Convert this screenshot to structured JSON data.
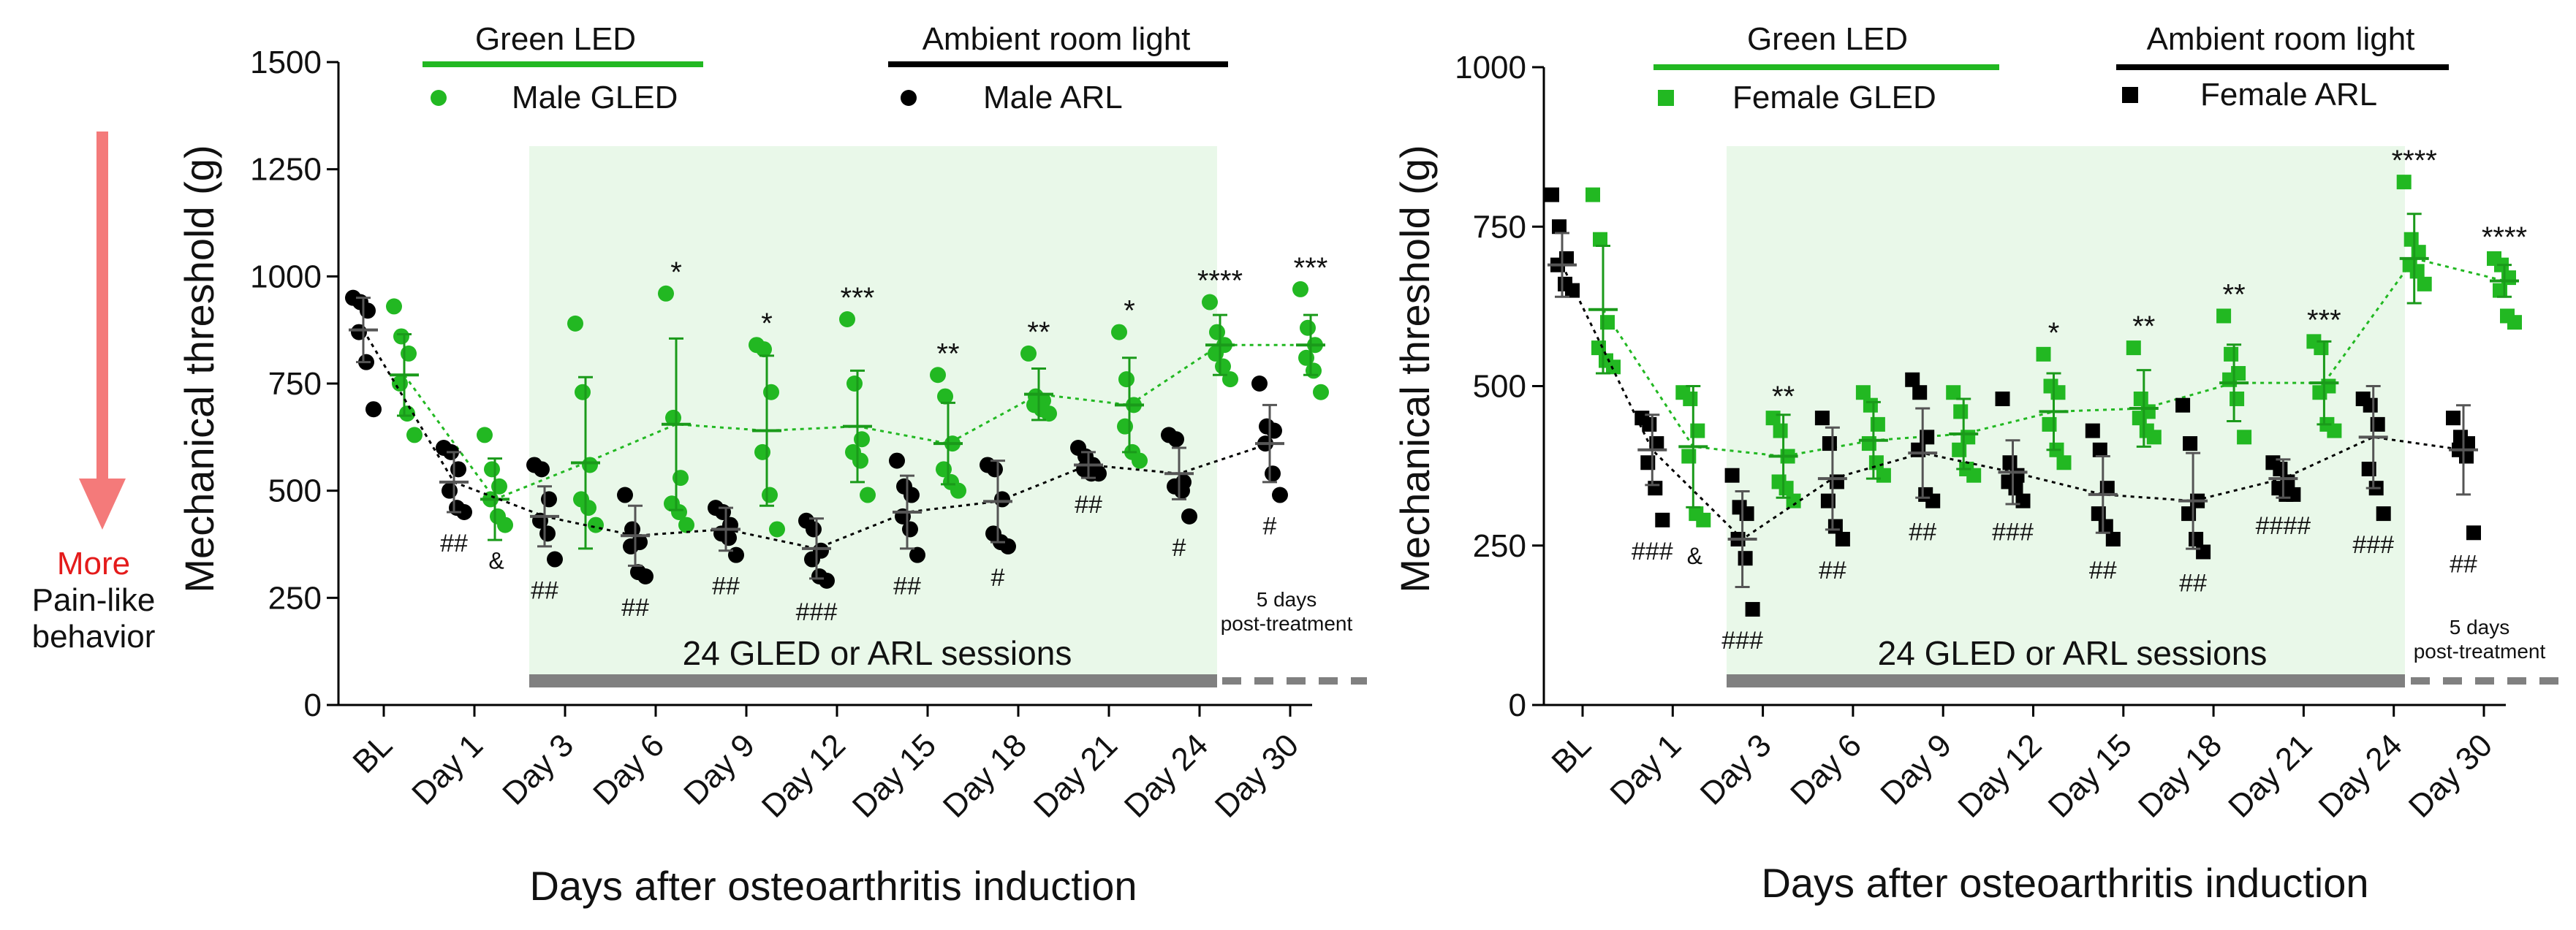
{
  "colors": {
    "gled": "#22b822",
    "arl": "#000000",
    "shade": "#e9f8e9",
    "bar": "#808080",
    "arrow": "#f47a7a",
    "more": "#e41b1b"
  },
  "side_label": {
    "more": "More",
    "line2": "Pain-like",
    "line3": "behavior"
  },
  "chart_data": [
    {
      "type": "scatter",
      "ylabel": "Mechanical threshold (g)",
      "xlabel": "Days after osteoarthritis induction",
      "ylim": [
        0,
        1500
      ],
      "yticks": [
        0,
        250,
        500,
        750,
        1000,
        1250,
        1500
      ],
      "categories": [
        "BL",
        "Day 1",
        "Day 3",
        "Day 6",
        "Day 9",
        "Day 12",
        "Day 15",
        "Day 18",
        "Day 21",
        "Day 24",
        "Day 30"
      ],
      "legend": {
        "green_title": "Green LED",
        "green_entry": "Male GLED",
        "black_title": "Ambient room light",
        "black_entry": "Male ARL",
        "marker": "circle"
      },
      "sessions_label": "24 GLED or ARL sessions",
      "post_label_1": "5 days",
      "post_label_2": "post-treatment",
      "series": [
        {
          "name": "Male GLED",
          "means": [
            770,
            480,
            565,
            655,
            640,
            650,
            610,
            725,
            700,
            840,
            840
          ],
          "errors": [
            95,
            95,
            200,
            200,
            175,
            130,
            95,
            60,
            110,
            70,
            70
          ],
          "points": [
            [
              930,
              860,
              820,
              750,
              680,
              630
            ],
            [
              630,
              550,
              510,
              480,
              440,
              420
            ],
            [
              890,
              730,
              560,
              480,
              460,
              420
            ],
            [
              960,
              670,
              530,
              470,
              450,
              420
            ],
            [
              840,
              830,
              730,
              590,
              490,
              410
            ],
            [
              900,
              750,
              620,
              590,
              570,
              490
            ],
            [
              770,
              720,
              610,
              550,
              520,
              500
            ],
            [
              820,
              720,
              710,
              700,
              690,
              680
            ],
            [
              870,
              760,
              700,
              650,
              590,
              570
            ],
            [
              940,
              870,
              840,
              820,
              790,
              760
            ],
            [
              970,
              880,
              840,
              810,
              780,
              730
            ]
          ],
          "sig": [
            "",
            "&",
            "",
            "*",
            "*",
            "***",
            "**",
            "**",
            "*",
            "****",
            "***"
          ]
        },
        {
          "name": "Male ARL",
          "means": [
            875,
            520,
            440,
            395,
            410,
            365,
            450,
            475,
            560,
            540,
            610
          ],
          "errors": [
            75,
            70,
            70,
            70,
            50,
            70,
            85,
            95,
            30,
            60,
            90
          ],
          "points": [
            [
              950,
              940,
              920,
              870,
              800,
              690
            ],
            [
              600,
              590,
              550,
              500,
              460,
              450
            ],
            [
              560,
              550,
              480,
              430,
              400,
              340
            ],
            [
              490,
              410,
              380,
              370,
              310,
              300
            ],
            [
              460,
              450,
              420,
              400,
              390,
              350
            ],
            [
              430,
              410,
              360,
              340,
              300,
              290
            ],
            [
              570,
              510,
              490,
              440,
              410,
              350
            ],
            [
              560,
              550,
              480,
              400,
              380,
              370
            ],
            [
              600,
              580,
              560,
              550,
              540,
              540
            ],
            [
              630,
              620,
              520,
              510,
              500,
              440
            ],
            [
              750,
              650,
              640,
              610,
              540,
              490
            ]
          ],
          "sig": [
            "",
            "##",
            "##",
            "##",
            "##",
            "###",
            "##",
            "#",
            "##",
            "#",
            "#"
          ]
        }
      ]
    },
    {
      "type": "scatter",
      "ylabel": "Mechanical threshold (g)",
      "xlabel": "Days after osteoarthritis induction",
      "ylim": [
        0,
        1000
      ],
      "yticks": [
        0,
        250,
        500,
        750,
        1000
      ],
      "categories": [
        "BL",
        "Day 1",
        "Day 3",
        "Day 6",
        "Day 9",
        "Day 12",
        "Day 15",
        "Day 18",
        "Day 21",
        "Day 24",
        "Day 30"
      ],
      "legend": {
        "green_title": "Green LED",
        "green_entry": "Female GLED",
        "black_title": "Ambient room light",
        "black_entry": "Female ARL",
        "marker": "square"
      },
      "sessions_label": "24 GLED or ARL sessions",
      "post_label_1": "5 days",
      "post_label_2": "post-treatment",
      "series": [
        {
          "name": "Female GLED",
          "means": [
            620,
            405,
            390,
            415,
            425,
            460,
            465,
            505,
            505,
            700,
            665
          ],
          "errors": [
            100,
            95,
            65,
            60,
            55,
            60,
            60,
            60,
            65,
            70,
            25
          ],
          "points": [
            [
              800,
              730,
              600,
              560,
              540,
              530
            ],
            [
              490,
              480,
              430,
              390,
              300,
              290
            ],
            [
              450,
              430,
              390,
              350,
              340,
              320
            ],
            [
              490,
              470,
              440,
              410,
              380,
              360
            ],
            [
              490,
              460,
              420,
              400,
              370,
              360
            ],
            [
              550,
              500,
              490,
              440,
              400,
              380
            ],
            [
              560,
              480,
              460,
              450,
              430,
              420
            ],
            [
              610,
              550,
              520,
              510,
              480,
              420
            ],
            [
              570,
              560,
              500,
              490,
              440,
              430
            ],
            [
              820,
              730,
              710,
              690,
              680,
              660
            ],
            [
              700,
              690,
              670,
              650,
              610,
              600
            ]
          ],
          "sig": [
            "",
            "&",
            "**",
            "",
            "",
            "*",
            "**",
            "**",
            "***",
            "****",
            "****"
          ]
        },
        {
          "name": "Female ARL",
          "means": [
            690,
            400,
            260,
            355,
            395,
            365,
            330,
            320,
            355,
            420,
            400
          ],
          "errors": [
            50,
            55,
            75,
            80,
            70,
            50,
            60,
            75,
            30,
            80,
            70
          ],
          "points": [
            [
              800,
              750,
              700,
              690,
              660,
              650
            ],
            [
              450,
              440,
              410,
              380,
              340,
              290
            ],
            [
              360,
              310,
              300,
              260,
              230,
              150
            ],
            [
              450,
              410,
              350,
              320,
              280,
              260
            ],
            [
              510,
              490,
              420,
              400,
              330,
              320
            ],
            [
              480,
              380,
              360,
              350,
              340,
              320
            ],
            [
              430,
              400,
              340,
              300,
              280,
              260
            ],
            [
              470,
              410,
              320,
              300,
              260,
              240
            ],
            [
              380,
              370,
              350,
              340,
              330,
              330
            ],
            [
              480,
              470,
              440,
              370,
              340,
              300
            ],
            [
              450,
              420,
              410,
              400,
              390,
              270
            ]
          ],
          "sig": [
            "",
            "###",
            "###",
            "##",
            "##",
            "###",
            "##",
            "##",
            "####",
            "###",
            "##"
          ]
        }
      ]
    }
  ]
}
